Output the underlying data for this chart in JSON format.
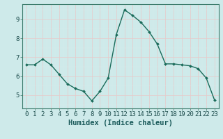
{
  "x": [
    0,
    1,
    2,
    3,
    4,
    5,
    6,
    7,
    8,
    9,
    10,
    11,
    12,
    13,
    14,
    15,
    16,
    17,
    18,
    19,
    20,
    21,
    22,
    23
  ],
  "y": [
    6.6,
    6.6,
    6.9,
    6.6,
    6.1,
    5.6,
    5.35,
    5.2,
    4.7,
    5.2,
    5.9,
    8.2,
    9.5,
    9.2,
    8.85,
    8.35,
    7.7,
    6.65,
    6.65,
    6.6,
    6.55,
    6.4,
    5.9,
    4.75
  ],
  "line_color": "#1a6b5a",
  "marker": "D",
  "marker_size": 2.0,
  "background_color": "#ceeaea",
  "grid_major_color": "#b8d8d8",
  "grid_minor_color": "#d8ecec",
  "xlabel": "Humidex (Indice chaleur)",
  "xlim": [
    -0.5,
    23.5
  ],
  "ylim": [
    4.3,
    9.8
  ],
  "yticks": [
    5,
    6,
    7,
    8,
    9
  ],
  "xticks": [
    0,
    1,
    2,
    3,
    4,
    5,
    6,
    7,
    8,
    9,
    10,
    11,
    12,
    13,
    14,
    15,
    16,
    17,
    18,
    19,
    20,
    21,
    22,
    23
  ],
  "xlabel_fontsize": 7.5,
  "tick_fontsize": 6.5,
  "line_width": 1.0
}
